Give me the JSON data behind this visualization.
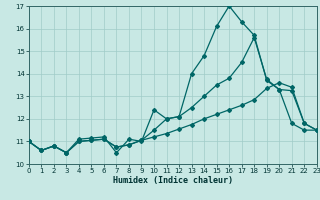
{
  "xlabel": "Humidex (Indice chaleur)",
  "background_color": "#c8e8e4",
  "grid_color": "#a0ccc8",
  "line_color": "#006666",
  "xlim": [
    0,
    23
  ],
  "ylim": [
    10,
    17
  ],
  "xticks": [
    0,
    1,
    2,
    3,
    4,
    5,
    6,
    7,
    8,
    9,
    10,
    11,
    12,
    13,
    14,
    15,
    16,
    17,
    18,
    19,
    20,
    21,
    22,
    23
  ],
  "yticks": [
    10,
    11,
    12,
    13,
    14,
    15,
    16,
    17
  ],
  "series1_x": [
    0,
    1,
    2,
    3,
    4,
    5,
    6,
    7,
    8,
    9,
    10,
    11,
    12,
    13,
    14,
    15,
    16,
    17,
    18,
    19,
    20,
    21,
    22,
    23
  ],
  "series1_y": [
    11.0,
    10.6,
    10.8,
    10.5,
    11.1,
    11.15,
    11.2,
    10.5,
    11.1,
    11.0,
    12.4,
    12.0,
    12.1,
    14.0,
    14.8,
    16.1,
    17.0,
    16.3,
    15.7,
    13.7,
    13.3,
    11.8,
    11.5,
    11.5
  ],
  "series2_x": [
    0,
    1,
    2,
    3,
    4,
    5,
    6,
    7,
    8,
    9,
    10,
    11,
    12,
    13,
    14,
    15,
    16,
    17,
    18,
    19,
    20,
    21,
    22,
    23
  ],
  "series2_y": [
    11.0,
    10.6,
    10.8,
    10.5,
    11.0,
    11.05,
    11.1,
    10.75,
    10.85,
    11.05,
    11.5,
    12.0,
    12.1,
    12.5,
    13.0,
    13.5,
    13.8,
    14.5,
    15.6,
    13.75,
    13.3,
    13.25,
    11.8,
    11.5
  ],
  "series3_x": [
    0,
    1,
    2,
    3,
    4,
    5,
    6,
    7,
    8,
    9,
    10,
    11,
    12,
    13,
    14,
    15,
    16,
    17,
    18,
    19,
    20,
    21,
    22,
    23
  ],
  "series3_y": [
    11.0,
    10.6,
    10.8,
    10.5,
    11.0,
    11.05,
    11.1,
    10.75,
    10.85,
    11.05,
    11.2,
    11.35,
    11.55,
    11.75,
    12.0,
    12.2,
    12.4,
    12.6,
    12.85,
    13.35,
    13.6,
    13.4,
    11.8,
    11.5
  ]
}
